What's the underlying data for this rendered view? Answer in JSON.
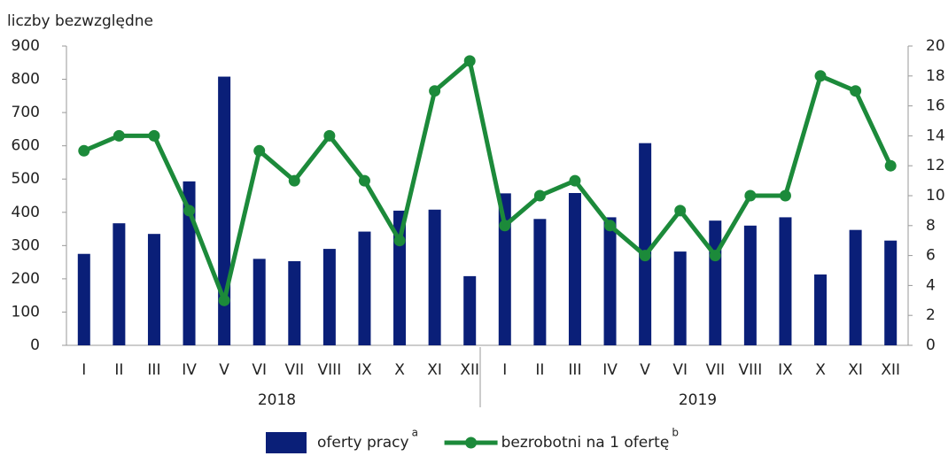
{
  "chart_data": {
    "type": "bar-line",
    "y_axis_label": "liczby bezwzględne",
    "categories": [
      "I",
      "II",
      "III",
      "IV",
      "V",
      "VI",
      "VII",
      "VIII",
      "IX",
      "X",
      "XI",
      "XII",
      "I",
      "II",
      "III",
      "IV",
      "V",
      "VI",
      "VII",
      "VIII",
      "IX",
      "X",
      "XI",
      "XII"
    ],
    "x_groups": [
      "2018",
      "2019"
    ],
    "series": [
      {
        "name": "oferty pracy",
        "note": "a",
        "type": "bar",
        "color": "#0a1f78",
        "values": [
          275,
          367,
          335,
          493,
          808,
          260,
          253,
          290,
          342,
          405,
          408,
          208,
          457,
          380,
          458,
          385,
          608,
          282,
          375,
          360,
          385,
          213,
          347,
          315
        ]
      },
      {
        "name": "bezrobotni na 1 ofertę",
        "note": "b",
        "type": "line",
        "axis": "y2",
        "color": "#1c8a3a",
        "values": [
          13,
          14,
          14,
          9,
          3,
          13,
          11,
          14,
          11,
          7,
          17,
          19,
          8,
          10,
          11,
          8,
          6,
          9,
          6,
          10,
          10,
          18,
          17,
          12
        ]
      }
    ],
    "ylim": [
      0,
      900
    ],
    "yticks": [
      0,
      100,
      200,
      300,
      400,
      500,
      600,
      700,
      800,
      900
    ],
    "y2lim": [
      0,
      20
    ],
    "y2ticks": [
      0,
      2,
      4,
      6,
      8,
      10,
      12,
      14,
      16,
      18,
      20
    ],
    "grid": false,
    "legend": "bottom"
  }
}
